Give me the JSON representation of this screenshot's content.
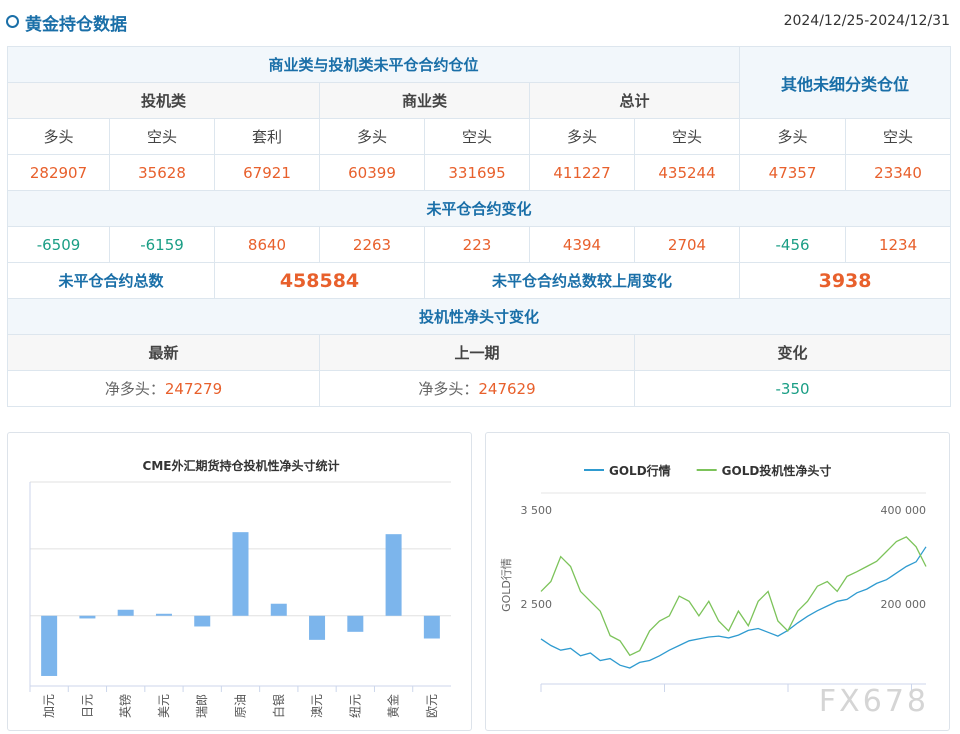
{
  "header": {
    "title": "黄金持仓数据",
    "date_range": "2024/12/25-2024/12/31"
  },
  "table": {
    "rows": [
      [
        "商业类与投机类未平仓合约仓位",
        "其他未细分类仓位"
      ],
      [
        "投机类",
        "商业类",
        "总计"
      ],
      [
        "多头",
        "空头",
        "套利",
        "多头",
        "空头",
        "多头",
        "空头",
        "多头",
        "空头"
      ],
      [
        282907,
        35628,
        67921,
        60399,
        331695,
        411227,
        435244,
        47357,
        23340
      ],
      [
        "未平仓合约变化"
      ],
      [
        -6509,
        -6159,
        8640,
        2263,
        223,
        4394,
        2704,
        -456,
        1234
      ],
      [
        "未平仓合约总数",
        458584,
        "未平仓合约总数较上周变化",
        3938
      ],
      [
        "投机性净头寸变化"
      ],
      [
        "最新",
        "上一期",
        "变化"
      ],
      [
        {
          "label": "净多头：",
          "value": 247279
        },
        {
          "label": "净多头：",
          "value": 247629
        },
        -350
      ]
    ]
  },
  "chart_data": [
    {
      "type": "bar",
      "title": "CME外汇期货持仓投机性净头寸统计",
      "categories": [
        "加元",
        "日元",
        "英镑",
        "美元",
        "瑞郎",
        "原油",
        "白银",
        "澳元",
        "纽元",
        "黄金",
        "欧元"
      ],
      "values": [
        -0.9,
        -0.04,
        0.09,
        0.03,
        -0.16,
        1.25,
        0.18,
        -0.36,
        -0.24,
        1.22,
        -0.34
      ],
      "color": "#7cb5ec",
      "ylim": [
        -1.05,
        2
      ],
      "yticks": [
        0,
        1,
        2
      ],
      "grid": true
    },
    {
      "type": "line",
      "y_label": "GOLD行情",
      "legend": "top",
      "series": [
        {
          "name": "GOLD行情",
          "color": "#2f9bd0",
          "values": [
            2130,
            2060,
            2010,
            2030,
            1950,
            1980,
            1900,
            1920,
            1850,
            1820,
            1880,
            1900,
            1950,
            2010,
            2060,
            2110,
            2130,
            2150,
            2160,
            2140,
            2170,
            2220,
            2240,
            2200,
            2160,
            2220,
            2300,
            2370,
            2430,
            2480,
            2530,
            2550,
            2620,
            2660,
            2720,
            2760,
            2830,
            2900,
            2950,
            3110
          ]
        },
        {
          "name": "GOLD投机性净头寸",
          "color": "#7cc35a",
          "axis": "y2",
          "values": [
            227000,
            248000,
            301000,
            280000,
            227000,
            206000,
            185000,
            133000,
            122000,
            91000,
            101000,
            143000,
            164000,
            175000,
            217000,
            206000,
            175000,
            206000,
            164000,
            143000,
            185000,
            154000,
            206000,
            227000,
            164000,
            143000,
            185000,
            206000,
            238000,
            248000,
            227000,
            259000,
            269000,
            280000,
            291000,
            312000,
            333000,
            343000,
            322000,
            280000
          ]
        }
      ],
      "ylim": [
        1650,
        3650
      ],
      "yticks": [
        {
          "value": 2500,
          "label": "2 500"
        },
        {
          "value": 3500,
          "label": "3 500"
        }
      ],
      "y2lim": [
        30000,
        430000
      ],
      "y2ticks": [
        {
          "value": 200000,
          "label": "200 000"
        },
        {
          "value": 400000,
          "label": "400 000"
        }
      ]
    }
  ],
  "watermark": "FX678"
}
